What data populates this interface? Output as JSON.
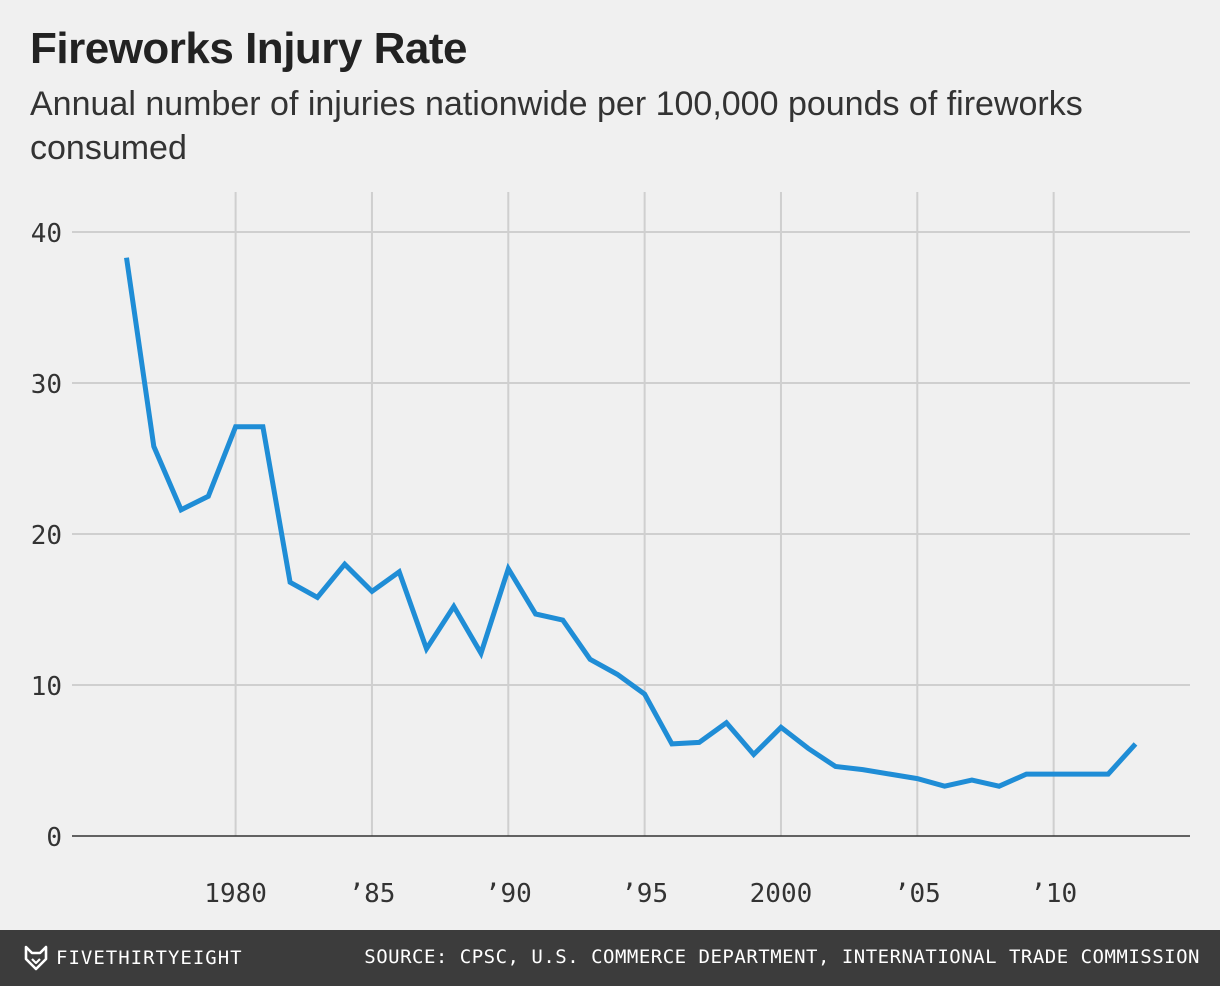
{
  "chart_data": {
    "type": "line",
    "title": "Fireworks Injury Rate",
    "subtitle": "Annual number of injuries nationwide per 100,000 pounds of fireworks consumed",
    "xlabel": "",
    "ylabel": "",
    "xlim": [
      1974,
      2015
    ],
    "ylim": [
      0,
      40
    ],
    "grid": true,
    "legend": "none",
    "line_color": "#1f8dd6",
    "x_ticks": [
      {
        "value": 1980,
        "label": "1980"
      },
      {
        "value": 1985,
        "label": "’85"
      },
      {
        "value": 1990,
        "label": "’90"
      },
      {
        "value": 1995,
        "label": "’95"
      },
      {
        "value": 2000,
        "label": "2000"
      },
      {
        "value": 2005,
        "label": "’05"
      },
      {
        "value": 2010,
        "label": "’10"
      }
    ],
    "y_ticks": [
      {
        "value": 0,
        "label": "0"
      },
      {
        "value": 10,
        "label": "10"
      },
      {
        "value": 20,
        "label": "20"
      },
      {
        "value": 30,
        "label": "30"
      },
      {
        "value": 40,
        "label": "40"
      }
    ],
    "series": [
      {
        "x": [
          1976,
          1977,
          1978,
          1979,
          1980,
          1981,
          1982,
          1983,
          1984,
          1985,
          1986,
          1987,
          1988,
          1989,
          1990,
          1991,
          1992,
          1993,
          1994,
          1995,
          1996,
          1997,
          1998,
          1999,
          2000,
          2001,
          2002,
          2003,
          2004,
          2005,
          2006,
          2007,
          2008,
          2009,
          2010,
          2011,
          2012,
          2013
        ],
        "y": [
          38.3,
          25.8,
          21.6,
          22.5,
          27.1,
          27.1,
          16.8,
          15.8,
          18.0,
          16.2,
          17.5,
          12.4,
          15.2,
          12.1,
          17.7,
          14.7,
          14.3,
          11.7,
          10.7,
          9.4,
          6.1,
          6.2,
          7.5,
          5.4,
          7.2,
          5.8,
          4.6,
          4.4,
          4.1,
          3.8,
          3.3,
          3.7,
          3.3,
          4.1,
          4.1,
          4.1,
          4.1,
          6.1
        ]
      }
    ]
  },
  "footer": {
    "logo_text": "FIVETHIRTYEIGHT",
    "source": "SOURCE: CPSC, U.S. COMMERCE DEPARTMENT, INTERNATIONAL TRADE COMMISSION"
  }
}
